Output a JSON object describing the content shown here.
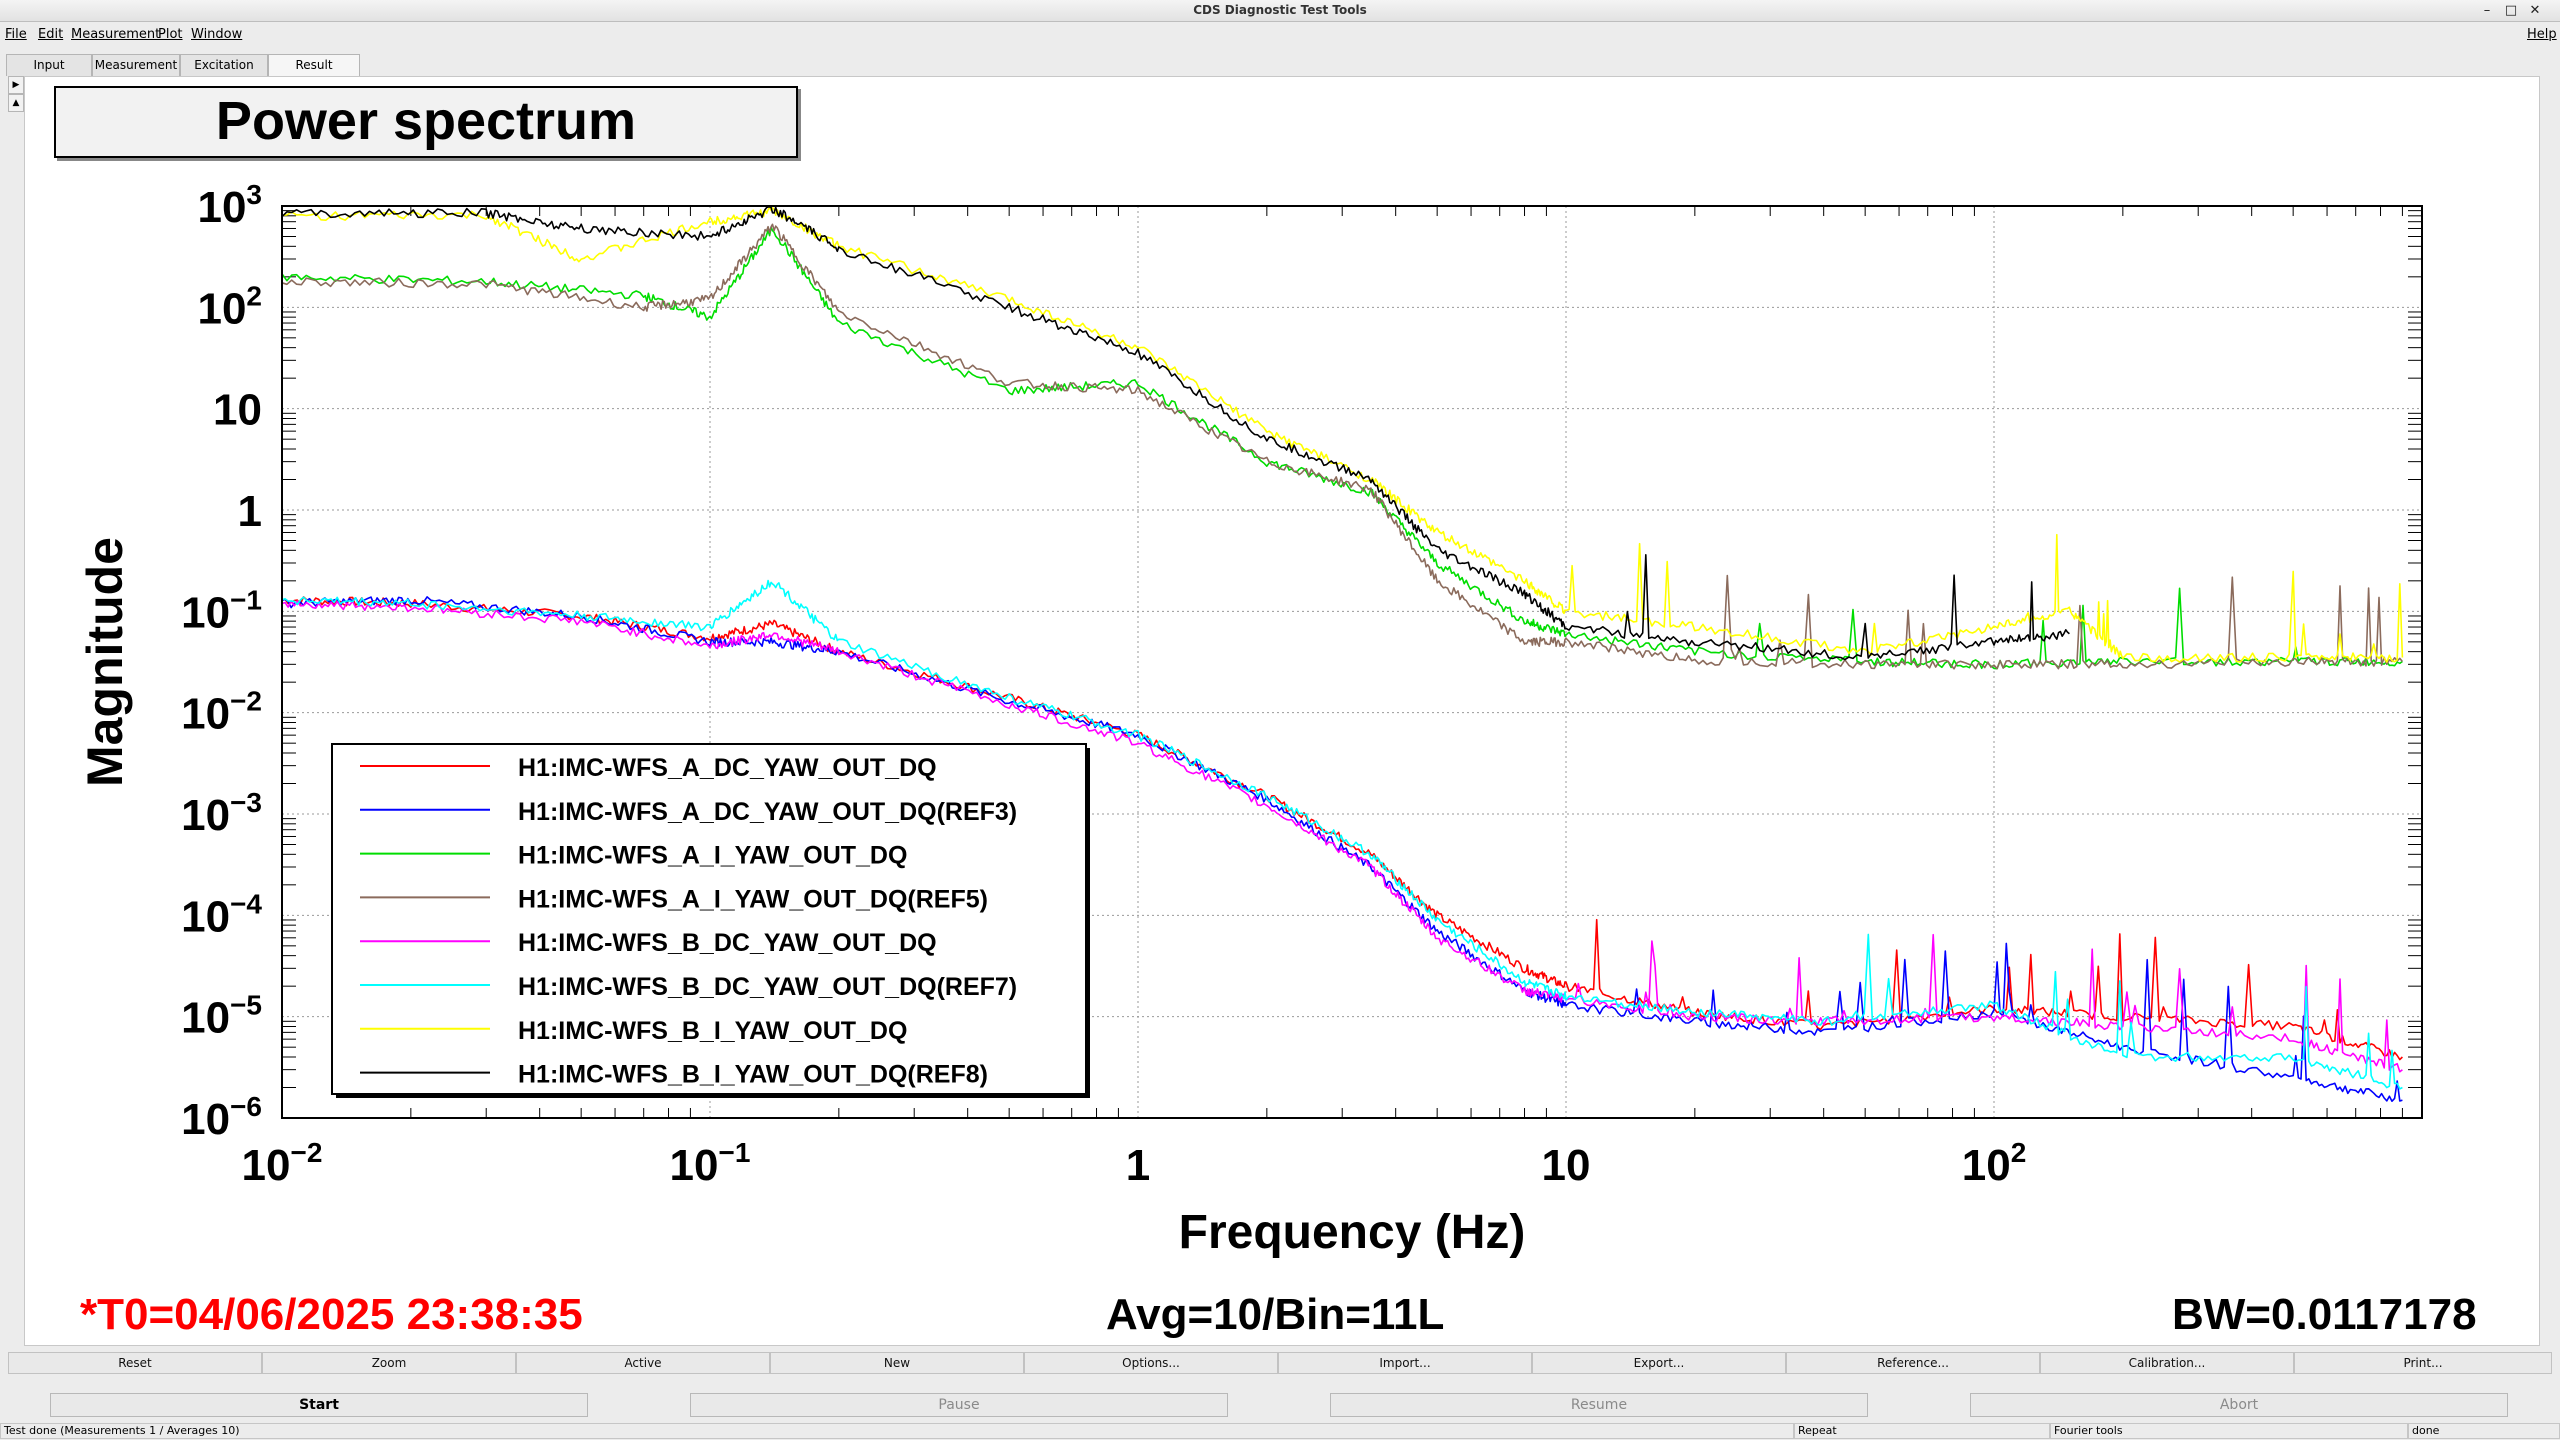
{
  "window": {
    "title": "CDS Diagnostic Test Tools",
    "controls": [
      "–",
      "□",
      "✕"
    ]
  },
  "menu": {
    "items": [
      "File",
      "Edit",
      "Measurement",
      "Plot",
      "Window"
    ],
    "help": "Help"
  },
  "tabs": [
    "Input",
    "Measurement",
    "Excitation",
    "Result"
  ],
  "active_tab": "Result",
  "plot_title": "Power spectrum",
  "chart_data": {
    "type": "line",
    "title": "Power spectrum",
    "xlabel": "Frequency (Hz)",
    "ylabel": "Magnitude",
    "xscale": "log",
    "yscale": "log",
    "xlim": [
      0.01,
      1000
    ],
    "ylim": [
      1e-06,
      1000
    ],
    "grid": true,
    "legend_position": "lower-left",
    "x_ticks": [
      {
        "base": "10",
        "exp": "−2"
      },
      {
        "base": "10",
        "exp": "−1"
      },
      {
        "base": "1",
        "exp": ""
      },
      {
        "base": "10",
        "exp": ""
      },
      {
        "base": "10",
        "exp": "2"
      }
    ],
    "y_ticks": [
      {
        "base": "10",
        "exp": "3"
      },
      {
        "base": "10",
        "exp": "2"
      },
      {
        "base": "10",
        "exp": ""
      },
      {
        "base": "1",
        "exp": ""
      },
      {
        "base": "10",
        "exp": "−1"
      },
      {
        "base": "10",
        "exp": "−2"
      },
      {
        "base": "10",
        "exp": "−3"
      },
      {
        "base": "10",
        "exp": "−4"
      },
      {
        "base": "10",
        "exp": "−5"
      },
      {
        "base": "10",
        "exp": "−6"
      }
    ],
    "series": [
      {
        "name": "H1:IMC-WFS_A_DC_YAW_OUT_DQ",
        "color": "#ff0000",
        "x": [
          0.01,
          0.02,
          0.05,
          0.1,
          0.14,
          0.2,
          0.5,
          1,
          2,
          3.5,
          5,
          8,
          10,
          20,
          40,
          100,
          200,
          500,
          900
        ],
        "y": [
          0.13,
          0.12,
          0.09,
          0.055,
          0.075,
          0.04,
          0.014,
          0.006,
          0.0015,
          0.0004,
          0.0001,
          3e-05,
          2e-05,
          1.1e-05,
          8e-06,
          1.2e-05,
          1e-05,
          8e-06,
          4e-06
        ]
      },
      {
        "name": "H1:IMC-WFS_A_DC_YAW_OUT_DQ(REF3)",
        "color": "#0000ff",
        "x": [
          0.01,
          0.02,
          0.05,
          0.1,
          0.14,
          0.2,
          0.5,
          1,
          2,
          3.5,
          5,
          8,
          10,
          20,
          40,
          100,
          200,
          500,
          900
        ],
        "y": [
          0.12,
          0.13,
          0.09,
          0.05,
          0.05,
          0.04,
          0.013,
          0.006,
          0.0014,
          0.0003,
          7e-05,
          1.8e-05,
          1.3e-05,
          9e-06,
          7e-06,
          1.1e-05,
          5e-06,
          2.5e-06,
          1.5e-06
        ]
      },
      {
        "name": "H1:IMC-WFS_A_I_YAW_OUT_DQ",
        "color": "#00dd00",
        "x": [
          0.01,
          0.03,
          0.07,
          0.1,
          0.14,
          0.2,
          0.5,
          1,
          2,
          3.5,
          5,
          8,
          10,
          20,
          50,
          100,
          200,
          500,
          900
        ],
        "y": [
          200,
          180,
          130,
          80,
          600,
          70,
          15,
          18,
          3,
          1.5,
          0.3,
          0.08,
          0.06,
          0.04,
          0.032,
          0.03,
          0.032,
          0.032,
          0.032
        ]
      },
      {
        "name": "H1:IMC-WFS_A_I_YAW_OUT_DQ(REF5)",
        "color": "#8b6b5c",
        "x": [
          0.01,
          0.03,
          0.07,
          0.1,
          0.14,
          0.2,
          0.5,
          1,
          2,
          3.5,
          5,
          8,
          10,
          20,
          50,
          100,
          200,
          500,
          900
        ],
        "y": [
          180,
          170,
          100,
          120,
          650,
          90,
          18,
          15,
          3,
          1.6,
          0.2,
          0.05,
          0.05,
          0.033,
          0.03,
          0.03,
          0.03,
          0.032,
          0.032
        ]
      },
      {
        "name": "H1:IMC-WFS_B_DC_YAW_OUT_DQ",
        "color": "#ff00ff",
        "x": [
          0.01,
          0.02,
          0.05,
          0.1,
          0.14,
          0.2,
          0.5,
          1,
          2,
          3.5,
          5,
          8,
          10,
          20,
          40,
          100,
          200,
          500,
          900
        ],
        "y": [
          0.12,
          0.11,
          0.08,
          0.045,
          0.06,
          0.04,
          0.012,
          0.005,
          0.0012,
          0.0003,
          6e-05,
          1.8e-05,
          1.5e-05,
          1e-05,
          9e-06,
          1e-05,
          8e-06,
          6e-06,
          3e-06
        ]
      },
      {
        "name": "H1:IMC-WFS_B_DC_YAW_OUT_DQ(REF7)",
        "color": "#00ffff",
        "x": [
          0.01,
          0.02,
          0.05,
          0.1,
          0.14,
          0.2,
          0.5,
          1,
          2,
          3.5,
          5,
          8,
          10,
          20,
          40,
          100,
          200,
          500,
          900
        ],
        "y": [
          0.13,
          0.12,
          0.09,
          0.07,
          0.2,
          0.05,
          0.014,
          0.006,
          0.0015,
          0.0004,
          9e-05,
          2.2e-05,
          1.6e-05,
          1.1e-05,
          9e-06,
          1.3e-05,
          4e-06,
          4e-06,
          2e-06
        ]
      },
      {
        "name": "H1:IMC-WFS_B_I_YAW_OUT_DQ",
        "color": "#ffff00",
        "x": [
          0.01,
          0.03,
          0.05,
          0.1,
          0.14,
          0.2,
          0.5,
          1,
          2,
          3.5,
          5,
          8,
          10,
          20,
          50,
          100,
          150,
          200,
          500,
          900
        ],
        "y": [
          800,
          800,
          300,
          700,
          900,
          400,
          120,
          40,
          6,
          2,
          0.6,
          0.2,
          0.1,
          0.07,
          0.04,
          0.07,
          0.1,
          0.035,
          0.035,
          0.035
        ]
      },
      {
        "name": "H1:IMC-WFS_B_I_YAW_OUT_DQ(REF8)",
        "color": "#000000",
        "x": [
          0.01,
          0.03,
          0.05,
          0.1,
          0.14,
          0.2,
          0.5,
          1,
          2,
          3.5,
          5,
          8,
          10,
          20,
          50,
          100,
          150
        ],
        "y": [
          850,
          850,
          600,
          500,
          950,
          380,
          100,
          35,
          5,
          2,
          0.4,
          0.15,
          0.07,
          0.05,
          0.035,
          0.05,
          0.06
        ]
      }
    ]
  },
  "status": {
    "t0": "*T0=04/06/2025 23:38:35",
    "avg": "Avg=10/Bin=11L",
    "bw": "BW=0.0117178"
  },
  "toolbar": [
    "Reset",
    "Zoom",
    "Active",
    "New",
    "Options...",
    "Import...",
    "Export...",
    "Reference...",
    "Calibration...",
    "Print..."
  ],
  "actions": [
    {
      "label": "Start",
      "enabled": true
    },
    {
      "label": "Pause",
      "enabled": false
    },
    {
      "label": "Resume",
      "enabled": false
    },
    {
      "label": "Abort",
      "enabled": false
    }
  ],
  "statusbar": [
    "Test done (Measurements 1 / Averages 10)",
    "Repeat",
    "Fourier tools",
    "done"
  ],
  "colors": {
    "t0_text": "#ff0000",
    "disabled_text": "#8a8a8a"
  }
}
